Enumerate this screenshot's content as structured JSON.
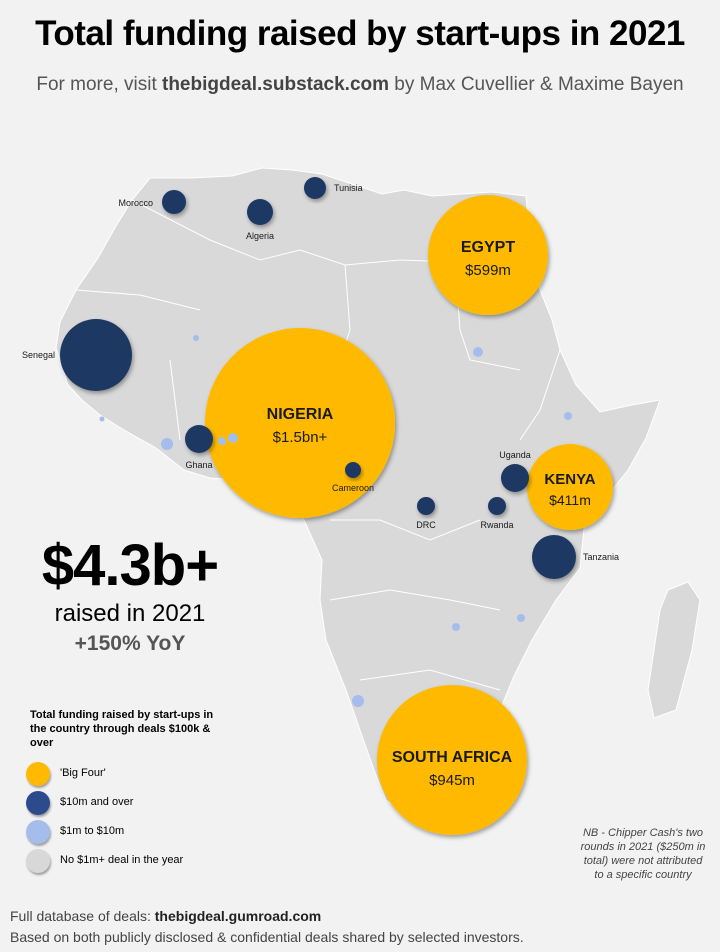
{
  "header": {
    "title": "Total funding raised by start-ups in 2021",
    "subtitle_prefix": "For more, visit ",
    "subtitle_site": "thebigdeal.substack.com",
    "subtitle_suffix": " by Max Cuvellier & Maxime Bayen"
  },
  "colors": {
    "big_four": "#FFBA00",
    "ten_m_over": "#1F3864",
    "one_to_ten_m": "#A4BDEC",
    "no_deal": "#d8d8d8",
    "land": "#d9d9d9",
    "background": "#f2f2f2"
  },
  "bubbles": [
    {
      "country": "NIGERIA",
      "value": "$1.5bn+",
      "category": "big_four"
    },
    {
      "country": "SOUTH AFRICA",
      "value": "$945m",
      "category": "big_four"
    },
    {
      "country": "EGYPT",
      "value": "$599m",
      "category": "big_four"
    },
    {
      "country": "KENYA",
      "value": "$411m",
      "category": "big_four"
    },
    {
      "country": "Senegal",
      "category": "ten_m_over"
    },
    {
      "country": "Morocco",
      "category": "ten_m_over"
    },
    {
      "country": "Algeria",
      "category": "ten_m_over"
    },
    {
      "country": "Tunisia",
      "category": "ten_m_over"
    },
    {
      "country": "Ghana",
      "category": "ten_m_over"
    },
    {
      "country": "Cameroon",
      "category": "ten_m_over"
    },
    {
      "country": "DRC",
      "category": "ten_m_over"
    },
    {
      "country": "Uganda",
      "category": "ten_m_over"
    },
    {
      "country": "Rwanda",
      "category": "ten_m_over"
    },
    {
      "country": "Tanzania",
      "category": "ten_m_over"
    }
  ],
  "summary": {
    "total": "$4.3b+",
    "raised_text": "raised in 2021",
    "yoy": "+150% YoY"
  },
  "legend": {
    "title": "Total funding raised by start-ups in the country through deals $100k & over",
    "items": [
      {
        "label": "'Big Four'",
        "color": "#FFBA00"
      },
      {
        "label": "$10m and over",
        "color": "#1F3864"
      },
      {
        "label": "$1m to $10m",
        "color": "#A4BDEC"
      },
      {
        "label": "No $1m+ deal in the year",
        "color": "#d8d8d8"
      }
    ]
  },
  "note": "NB - Chipper Cash's two rounds in 2021 ($250m in total) were not attributed to a specific country",
  "footer": {
    "line1_prefix": "Full database of deals: ",
    "line1_link": "thebigdeal.gumroad.com",
    "line2": "Based on both publicly disclosed & confidential deals shared by selected investors."
  }
}
